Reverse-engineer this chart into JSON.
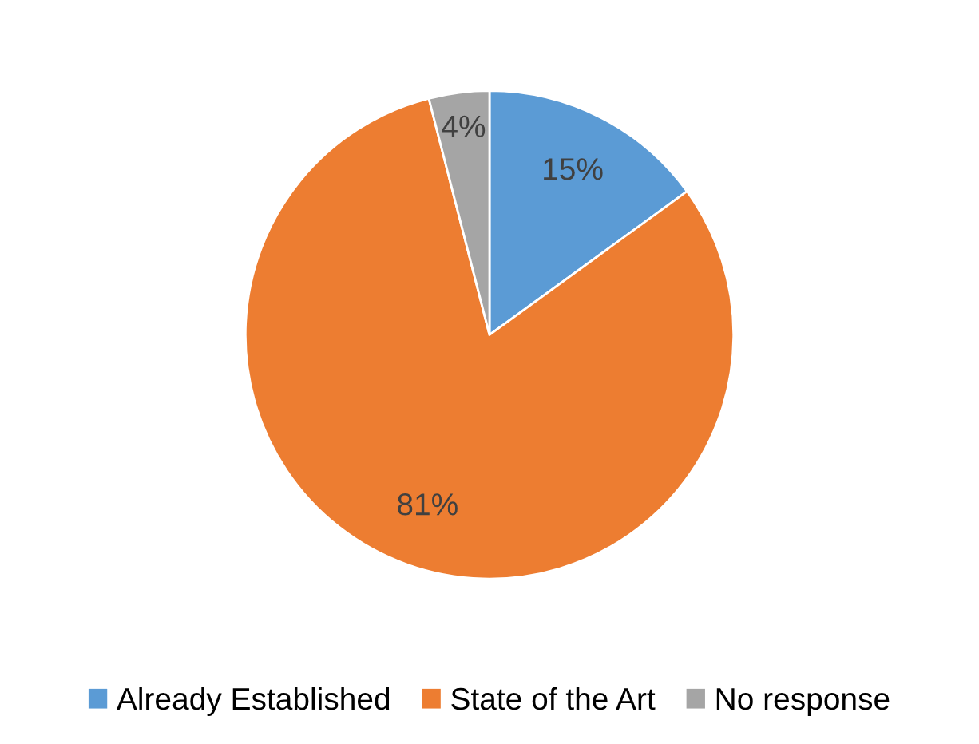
{
  "chart_data": {
    "type": "pie",
    "categories": [
      "Already Established",
      "State of the Art",
      "No response"
    ],
    "values": [
      15,
      81,
      4
    ],
    "colors": [
      "#5b9bd5",
      "#ed7d31",
      "#a5a5a5"
    ],
    "value_labels": [
      "15%",
      "81%",
      "4%"
    ],
    "legend": "bottom"
  }
}
